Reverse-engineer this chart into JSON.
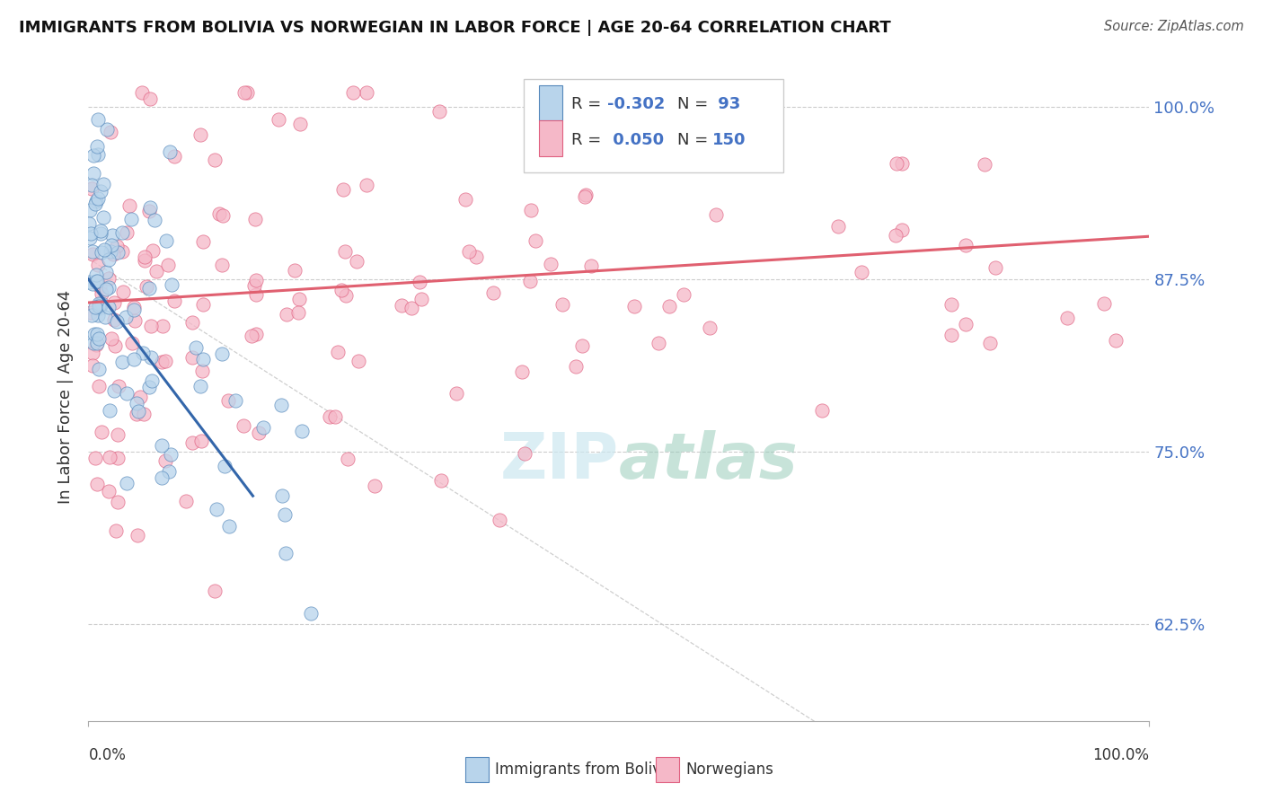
{
  "title": "IMMIGRANTS FROM BOLIVIA VS NORWEGIAN IN LABOR FORCE | AGE 20-64 CORRELATION CHART",
  "source_text": "Source: ZipAtlas.com",
  "ylabel": "In Labor Force | Age 20-64",
  "xlim": [
    0.0,
    1.0
  ],
  "ylim": [
    0.555,
    1.025
  ],
  "ytick_vals": [
    0.625,
    0.75,
    0.875,
    1.0
  ],
  "ytick_labels": [
    "62.5%",
    "75.0%",
    "87.5%",
    "100.0%"
  ],
  "color_blue_fill": "#b8d4eb",
  "color_blue_edge": "#5588bb",
  "color_pink_fill": "#f5b8c8",
  "color_pink_edge": "#e06080",
  "line_blue_color": "#3366aa",
  "line_pink_color": "#e06070",
  "diag_line_color": "#bbbbbb",
  "watermark_color": "#cce8f0",
  "ytick_color": "#4472c4",
  "legend_r1_val": "-0.302",
  "legend_n1_val": "93",
  "legend_r2_val": "0.050",
  "legend_n2_val": "150"
}
